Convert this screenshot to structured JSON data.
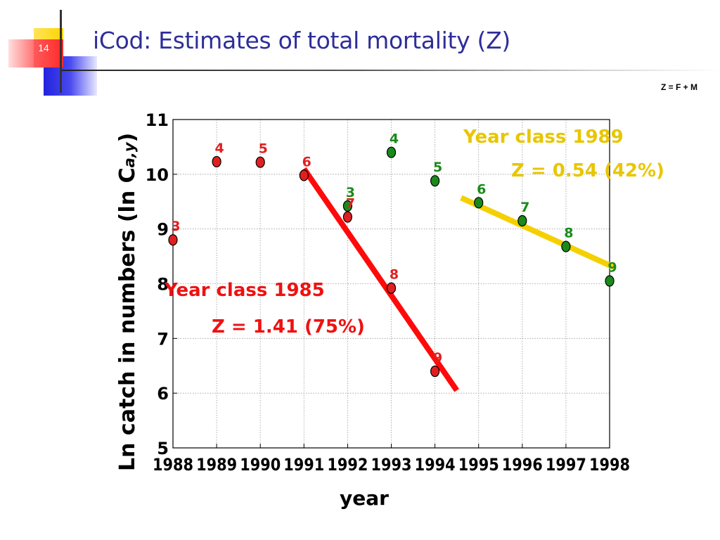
{
  "slide": {
    "number": "14",
    "title": "iCod: Estimates of total mortality (Z)",
    "formula": "Z = F + M"
  },
  "colors": {
    "title": "#2e2e9a",
    "red_series": "#e02020",
    "green_series": "#1a8a1a",
    "line_1985": "#ff0a0a",
    "line_1989": "#f5d000",
    "label_1985": "#ee1111",
    "label_1989": "#e8c600"
  },
  "chart_data": {
    "type": "scatter",
    "xlabel": "year",
    "ylabel_main": "Ln catch in numbers (ln C",
    "ylabel_sub": "a,y",
    "ylabel_close": ")",
    "xlim": [
      1988,
      1998
    ],
    "ylim": [
      5,
      11
    ],
    "xticks": [
      "1988",
      "1989",
      "1990",
      "1991",
      "1992",
      "1993",
      "1994",
      "1995",
      "1996",
      "1997",
      "1998"
    ],
    "yticks": [
      "5",
      "6",
      "7",
      "8",
      "9",
      "10",
      "11"
    ],
    "grid": true,
    "series": [
      {
        "name": "Year class 1985",
        "color": "#e02020",
        "points": [
          {
            "x": 1988,
            "y": 8.8,
            "age": "3"
          },
          {
            "x": 1989,
            "y": 10.23,
            "age": "4"
          },
          {
            "x": 1990,
            "y": 10.22,
            "age": "5"
          },
          {
            "x": 1991,
            "y": 9.98,
            "age": "6"
          },
          {
            "x": 1992,
            "y": 9.22,
            "age": "7"
          },
          {
            "x": 1993,
            "y": 7.92,
            "age": "8"
          },
          {
            "x": 1994,
            "y": 6.4,
            "age": "9"
          }
        ],
        "fit": {
          "x": [
            1991,
            1994.5
          ],
          "y": [
            10.1,
            6.05
          ],
          "color": "#ff0a0a"
        }
      },
      {
        "name": "Year class 1989",
        "color": "#1a8a1a",
        "points": [
          {
            "x": 1992,
            "y": 9.42,
            "age": "3"
          },
          {
            "x": 1993,
            "y": 10.4,
            "age": "4"
          },
          {
            "x": 1994,
            "y": 9.88,
            "age": "5"
          },
          {
            "x": 1995,
            "y": 9.48,
            "age": "6"
          },
          {
            "x": 1996,
            "y": 9.15,
            "age": "7"
          },
          {
            "x": 1997,
            "y": 8.68,
            "age": "8"
          },
          {
            "x": 1998,
            "y": 8.05,
            "age": "9"
          }
        ],
        "fit": {
          "x": [
            1994.6,
            1998.1
          ],
          "y": [
            9.57,
            8.3
          ],
          "color": "#f5d000"
        }
      }
    ],
    "annotations": {
      "yc1985_title": "Year class 1985",
      "yc1985_z": "Z = 1.41 (75%)",
      "yc1989_title": "Year class 1989",
      "yc1989_z": "Z = 0.54 (42%)"
    }
  }
}
